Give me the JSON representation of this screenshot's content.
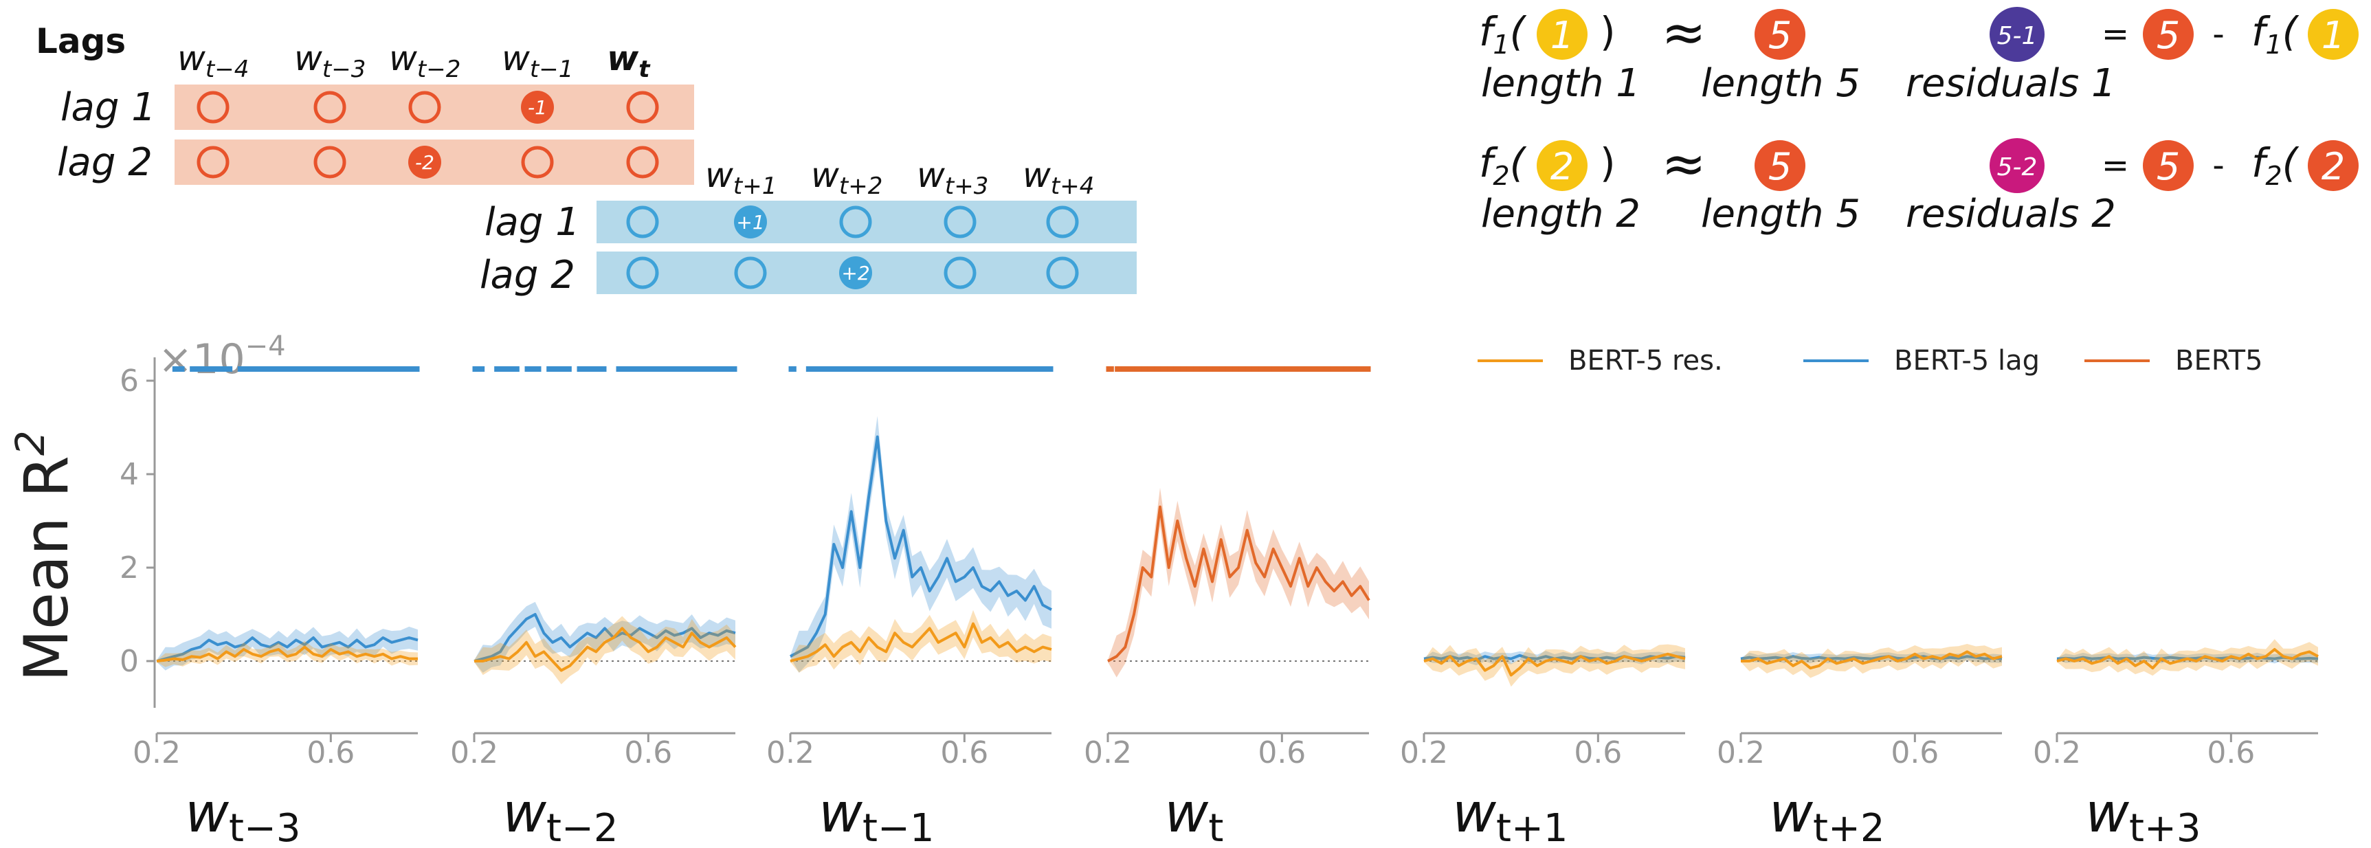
{
  "diagram": {
    "title": "Lags",
    "past_words": [
      "w",
      "w",
      "w",
      "w",
      "w"
    ],
    "past_subscripts": [
      "t−4",
      "t−3",
      "t−2",
      "t−1",
      "t"
    ],
    "future_words": [
      "w",
      "w",
      "w",
      "w"
    ],
    "future_subscripts": [
      "t+1",
      "t+2",
      "t+3",
      "t+4"
    ],
    "row_labels": [
      "lag 1",
      "lag 2"
    ],
    "marker_past_lag1": "-1",
    "marker_past_lag2": "-2",
    "marker_future_lag1": "+1",
    "marker_future_lag2": "+2",
    "colors": {
      "past_band": "#f6cbb7",
      "future_band": "#b4d9ea",
      "past_marker": "#e8532b",
      "future_marker": "#3ea2d8"
    }
  },
  "equations": [
    {
      "f": "f",
      "sub": "1",
      "input_num": "1",
      "target_num": "5",
      "residual_label": "5-1",
      "length_label_1": "length 1",
      "length_label_2": "length 5",
      "residual_text": "residuals 1",
      "residual_color": "#4c3a9a"
    },
    {
      "f": "f",
      "sub": "2",
      "input_num": "2",
      "target_num": "5",
      "residual_label": "5-2",
      "length_label_1": "length 2",
      "length_label_2": "length 5",
      "residual_text": "residuals 2",
      "residual_color": "#c9197d"
    }
  ],
  "equation_symbols": {
    "approx": "≈",
    "equals": "=",
    "minus": "-",
    "open": "(",
    "close": ")"
  },
  "equation_colors": {
    "input": "#f7c412",
    "target": "#e8532b"
  },
  "chart_data": {
    "type": "line",
    "ylabel_text": "Mean R",
    "ylabel_sup": "2",
    "scale_text": "×10",
    "scale_exp": "−4",
    "yticks": [
      0,
      2,
      4,
      6
    ],
    "xticks": [
      0.2,
      0.6
    ],
    "ylim": [
      -1.0,
      6.5
    ],
    "xlim": [
      0.2,
      0.8
    ],
    "legend": {
      "placement": "top-right",
      "entries": [
        {
          "name": "BERT-5 res.",
          "color": "#f29a1a"
        },
        {
          "name": "BERT-5 lag",
          "color": "#3a8fcf"
        },
        {
          "name": "BERT5",
          "color": "#e2692a"
        }
      ]
    },
    "x": [
      0.2,
      0.22,
      0.24,
      0.26,
      0.28,
      0.3,
      0.32,
      0.34,
      0.36,
      0.38,
      0.4,
      0.42,
      0.44,
      0.46,
      0.48,
      0.5,
      0.52,
      0.54,
      0.56,
      0.58,
      0.6,
      0.62,
      0.64,
      0.66,
      0.68,
      0.7,
      0.72,
      0.74,
      0.76,
      0.78,
      0.8
    ],
    "panels": [
      {
        "label_w": "w",
        "label_sub": "t−3",
        "significance_color": "#3a8fcf",
        "significance_ranges": [
          [
            0.24,
            0.26
          ],
          [
            0.28,
            0.37
          ],
          [
            0.39,
            0.8
          ]
        ],
        "series": [
          {
            "name": "BERT-5 lag",
            "color": "#3a8fcf",
            "band": 0.25,
            "values": [
              0,
              0.05,
              0.1,
              0.15,
              0.25,
              0.3,
              0.45,
              0.35,
              0.4,
              0.3,
              0.35,
              0.5,
              0.35,
              0.3,
              0.4,
              0.3,
              0.45,
              0.35,
              0.5,
              0.3,
              0.35,
              0.4,
              0.3,
              0.45,
              0.3,
              0.35,
              0.5,
              0.4,
              0.45,
              0.5,
              0.45
            ]
          },
          {
            "name": "BERT-5 res.",
            "color": "#f29a1a",
            "band": 0.15,
            "values": [
              0,
              0.02,
              0.05,
              0.03,
              0.1,
              0.08,
              0.15,
              0.05,
              0.2,
              0.1,
              0.25,
              0.15,
              0.1,
              0.2,
              0.25,
              0.1,
              0.15,
              0.3,
              0.15,
              0.1,
              0.25,
              0.15,
              0.2,
              0.1,
              0.15,
              0.1,
              0.15,
              0.05,
              0.1,
              0.05,
              0.05
            ]
          }
        ]
      },
      {
        "label_w": "w",
        "label_sub": "t−2",
        "significance_color": "#3a8fcf",
        "significance_ranges": [
          [
            0.2,
            0.22
          ],
          [
            0.25,
            0.3
          ],
          [
            0.32,
            0.35
          ],
          [
            0.37,
            0.42
          ],
          [
            0.44,
            0.5
          ],
          [
            0.53,
            0.8
          ]
        ],
        "series": [
          {
            "name": "BERT-5 lag",
            "color": "#3a8fcf",
            "band": 0.3,
            "values": [
              0,
              0.05,
              0.1,
              0.2,
              0.5,
              0.7,
              0.9,
              1.0,
              0.6,
              0.4,
              0.5,
              0.3,
              0.45,
              0.6,
              0.5,
              0.7,
              0.5,
              0.6,
              0.55,
              0.7,
              0.6,
              0.5,
              0.65,
              0.55,
              0.6,
              0.7,
              0.5,
              0.6,
              0.55,
              0.65,
              0.6
            ]
          },
          {
            "name": "BERT-5 res.",
            "color": "#f29a1a",
            "band": 0.3,
            "values": [
              0,
              0,
              0.05,
              0.1,
              0.05,
              0.2,
              0.4,
              0.1,
              0.2,
              0,
              -0.2,
              -0.1,
              0.1,
              0.3,
              0.2,
              0.4,
              0.5,
              0.7,
              0.5,
              0.4,
              0.2,
              0.3,
              0.5,
              0.4,
              0.3,
              0.6,
              0.4,
              0.3,
              0.4,
              0.5,
              0.3
            ]
          }
        ]
      },
      {
        "label_w": "w",
        "label_sub": "t−1",
        "significance_color": "#3a8fcf",
        "significance_ranges": [
          [
            0.2,
            0.21
          ],
          [
            0.24,
            0.8
          ]
        ],
        "series": [
          {
            "name": "BERT-5 lag",
            "color": "#3a8fcf",
            "band": 0.45,
            "values": [
              0.1,
              0.2,
              0.3,
              0.6,
              1.0,
              2.5,
              2.0,
              3.2,
              2.0,
              3.5,
              4.8,
              3.0,
              2.2,
              2.8,
              1.8,
              2.0,
              1.5,
              1.8,
              2.2,
              1.7,
              1.8,
              2.0,
              1.6,
              1.5,
              1.7,
              1.4,
              1.5,
              1.3,
              1.6,
              1.2,
              1.1
            ]
          },
          {
            "name": "BERT-5 res.",
            "color": "#f29a1a",
            "band": 0.3,
            "values": [
              0,
              0.05,
              0.1,
              0.2,
              0.35,
              0.1,
              0.3,
              0.4,
              0.2,
              0.5,
              0.3,
              0.2,
              0.6,
              0.4,
              0.3,
              0.5,
              0.7,
              0.4,
              0.5,
              0.6,
              0.3,
              0.8,
              0.4,
              0.5,
              0.3,
              0.4,
              0.2,
              0.3,
              0.2,
              0.3,
              0.25
            ]
          }
        ]
      },
      {
        "label_w": "w",
        "label_sub": "t",
        "significance_color": "#e2692a",
        "significance_ranges": [
          [
            0.2,
            0.21
          ],
          [
            0.22,
            0.8
          ]
        ],
        "series": [
          {
            "name": "BERT5",
            "color": "#e2692a",
            "band": 0.45,
            "values": [
              0,
              0.1,
              0.3,
              1.0,
              2.0,
              1.8,
              3.3,
              2.0,
              3.0,
              2.2,
              1.6,
              2.4,
              1.7,
              2.6,
              1.8,
              2.0,
              2.8,
              2.1,
              1.8,
              2.4,
              2.0,
              1.6,
              2.2,
              1.6,
              2.0,
              1.7,
              1.5,
              1.7,
              1.4,
              1.6,
              1.3
            ]
          }
        ]
      },
      {
        "label_w": "w",
        "label_sub": "t+1",
        "significance_color": "#3a8fcf",
        "significance_ranges": [],
        "series": [
          {
            "name": "BERT-5 lag",
            "color": "#3a8fcf",
            "band": 0.12,
            "values": [
              0.05,
              0.08,
              0.05,
              0.1,
              0.05,
              0.08,
              0.02,
              0.1,
              0.05,
              0.08,
              0.05,
              0.12,
              0.06,
              0.05,
              0.1,
              0.05,
              0.08,
              0.05,
              0.1,
              0.06,
              0.05,
              0.08,
              0.05,
              0.1,
              0.06,
              0.05,
              0.1,
              0.08,
              0.06,
              0.1,
              0.08
            ]
          },
          {
            "name": "BERT-5 res.",
            "color": "#f29a1a",
            "band": 0.25,
            "values": [
              0,
              0.05,
              -0.05,
              0.1,
              -0.1,
              0,
              0.05,
              -0.2,
              -0.1,
              0.1,
              -0.3,
              -0.15,
              0.05,
              -0.1,
              0,
              0.05,
              0,
              -0.05,
              0.1,
              0,
              0.05,
              -0.05,
              0,
              0.1,
              0.05,
              0,
              0.05,
              0.1,
              0.15,
              0.1,
              0.05
            ]
          }
        ]
      },
      {
        "label_w": "w",
        "label_sub": "t+2",
        "significance_color": "#3a8fcf",
        "significance_ranges": [],
        "series": [
          {
            "name": "BERT-5 lag",
            "color": "#3a8fcf",
            "band": 0.1,
            "values": [
              0.05,
              0.08,
              0.05,
              0.06,
              0.08,
              0.05,
              0.1,
              0.06,
              0.05,
              0.08,
              0.05,
              0.06,
              0.05,
              0.08,
              0.06,
              0.05,
              0.08,
              0.1,
              0.06,
              0.05,
              0.08,
              0.1,
              0.06,
              0.05,
              0.08,
              0.06,
              0.1,
              0.08,
              0.05,
              0.06,
              0.05
            ]
          },
          {
            "name": "BERT-5 res.",
            "color": "#f29a1a",
            "band": 0.22,
            "values": [
              0,
              0,
              0.05,
              -0.05,
              0,
              0.05,
              -0.1,
              0,
              -0.15,
              -0.1,
              0.05,
              -0.05,
              0,
              0.05,
              -0.05,
              0,
              0.05,
              0.1,
              0,
              0.05,
              0.15,
              0.05,
              0.1,
              0.05,
              0.15,
              0.1,
              0.2,
              0.1,
              0.15,
              0.05,
              0.1
            ]
          }
        ]
      },
      {
        "label_w": "w",
        "label_sub": "t+3",
        "significance_color": "#3a8fcf",
        "significance_ranges": [],
        "series": [
          {
            "name": "BERT-5 lag",
            "color": "#3a8fcf",
            "band": 0.1,
            "values": [
              0.05,
              0.06,
              0.05,
              0.08,
              0.05,
              0.06,
              0.08,
              0.05,
              0.06,
              0.05,
              0.08,
              0.06,
              0.05,
              0.08,
              0.06,
              0.05,
              0.06,
              0.08,
              0.05,
              0.06,
              0.08,
              0.05,
              0.06,
              0.08,
              0.06,
              0.05,
              0.08,
              0.06,
              0.05,
              0.06,
              0.05
            ]
          },
          {
            "name": "BERT-5 res.",
            "color": "#f29a1a",
            "band": 0.22,
            "values": [
              0,
              0.05,
              0,
              0.05,
              -0.05,
              0,
              0.1,
              -0.05,
              0.05,
              -0.1,
              0,
              -0.15,
              0.05,
              -0.05,
              0,
              0.05,
              0,
              0.1,
              0.05,
              0,
              0.1,
              0.05,
              0.15,
              0.05,
              0.1,
              0.25,
              0.1,
              0.05,
              0.15,
              0.2,
              0.1
            ]
          }
        ]
      }
    ]
  }
}
